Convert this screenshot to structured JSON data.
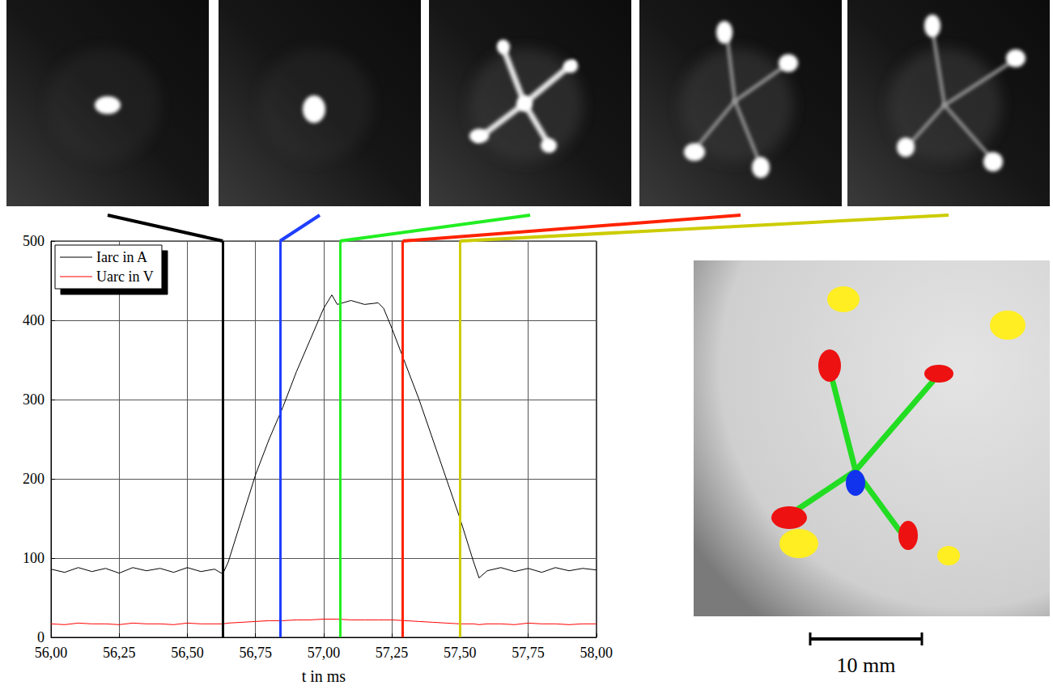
{
  "chart_data": {
    "type": "line",
    "x_label": "t in ms",
    "xlim": [
      56,
      58
    ],
    "xticks": [
      {
        "value": 56,
        "label": "56,00"
      },
      {
        "value": 56.25,
        "label": "56,25"
      },
      {
        "value": 56.5,
        "label": "56,50"
      },
      {
        "value": 56.75,
        "label": "56,75"
      },
      {
        "value": 57,
        "label": "57,00"
      },
      {
        "value": 57.25,
        "label": "57,25"
      },
      {
        "value": 57.5,
        "label": "57,50"
      },
      {
        "value": 57.75,
        "label": "57,75"
      },
      {
        "value": 58,
        "label": "58,00"
      }
    ],
    "ylim": [
      0,
      500
    ],
    "yticks": [
      0,
      100,
      200,
      300,
      400,
      500
    ],
    "grid": true,
    "legend": "upper left",
    "x": [
      56.0,
      56.05,
      56.1,
      56.15,
      56.2,
      56.25,
      56.3,
      56.35,
      56.4,
      56.45,
      56.5,
      56.55,
      56.6,
      56.63,
      56.65,
      56.7,
      56.75,
      56.8,
      56.85,
      56.9,
      56.95,
      57.0,
      57.03,
      57.05,
      57.1,
      57.15,
      57.2,
      57.22,
      57.25,
      57.3,
      57.35,
      57.4,
      57.45,
      57.5,
      57.55,
      57.57,
      57.6,
      57.65,
      57.7,
      57.75,
      57.8,
      57.85,
      57.9,
      57.95,
      58.0
    ],
    "series": [
      {
        "name": "Iarc in A",
        "color": "#000000",
        "values": [
          86,
          82,
          88,
          83,
          87,
          81,
          88,
          84,
          87,
          82,
          88,
          83,
          86,
          80,
          95,
          150,
          205,
          250,
          290,
          335,
          375,
          415,
          432,
          420,
          425,
          420,
          422,
          415,
          390,
          345,
          300,
          250,
          200,
          150,
          95,
          75,
          84,
          88,
          83,
          87,
          82,
          88,
          84,
          87,
          85
        ]
      },
      {
        "name": "Uarc in V",
        "color": "#ff0000",
        "values": [
          17,
          16,
          18,
          17,
          17,
          16,
          18,
          17,
          17,
          16,
          18,
          17,
          17,
          17,
          18,
          19,
          20,
          21,
          21,
          22,
          22,
          23,
          23,
          23,
          22,
          22,
          22,
          22,
          22,
          21,
          20,
          19,
          18,
          17,
          17,
          16,
          17,
          17,
          16,
          18,
          17,
          17,
          16,
          17,
          17
        ]
      }
    ],
    "markers": [
      {
        "x": 56.63,
        "color": "#000000"
      },
      {
        "x": 56.84,
        "color": "#1f3fff"
      },
      {
        "x": 57.06,
        "color": "#22ee22"
      },
      {
        "x": 57.29,
        "color": "#ff2200"
      },
      {
        "x": 57.5,
        "color": "#cccc00"
      }
    ]
  },
  "scale_bar": {
    "label": "10 mm"
  }
}
